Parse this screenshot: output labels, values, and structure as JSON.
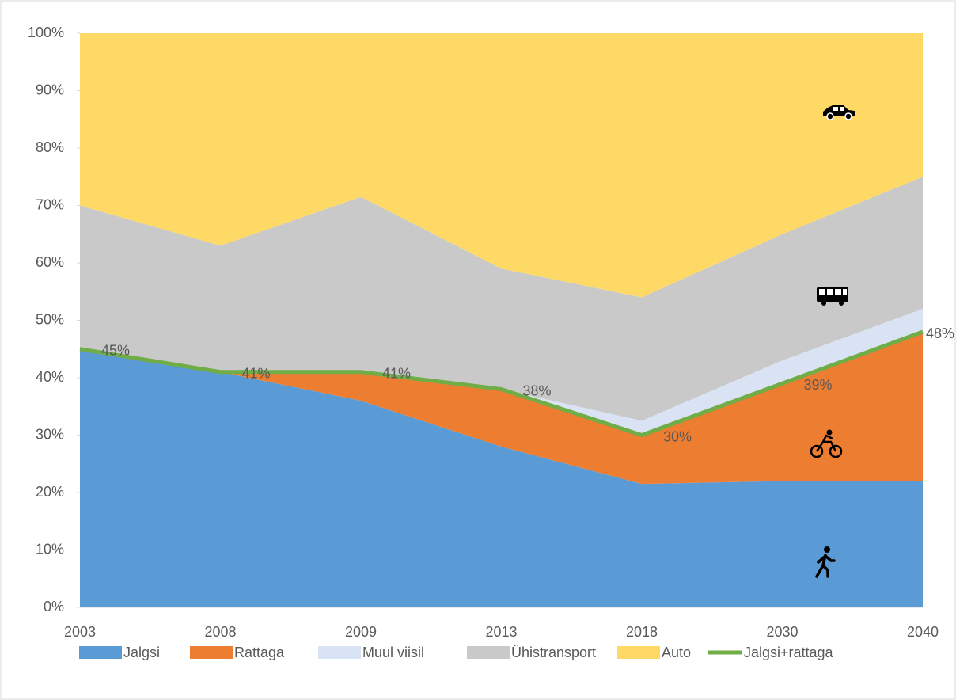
{
  "chart_data": {
    "type": "stacked_area",
    "categories": [
      "2003",
      "2008",
      "2009",
      "2013",
      "2018",
      "2030",
      "2040"
    ],
    "series": [
      {
        "name": "Jalgsi",
        "color": "#5b9bd5",
        "values": [
          45,
          41,
          36,
          28,
          21.5,
          22,
          22
        ]
      },
      {
        "name": "Rattaga",
        "color": "#ed7d31",
        "values": [
          0,
          0,
          5,
          10,
          8.5,
          17,
          26
        ]
      },
      {
        "name": "Muul viisil",
        "color": "#dae3f3",
        "values": [
          0,
          0,
          0,
          0,
          2.5,
          4,
          4
        ]
      },
      {
        "name": "Ühistransport",
        "color": "#c9c9c9",
        "values": [
          25,
          22,
          30.5,
          21,
          21.5,
          22,
          23
        ]
      },
      {
        "name": "Auto",
        "color": "#ffd966",
        "values": [
          30,
          37,
          28.5,
          41,
          46,
          35,
          25
        ]
      }
    ],
    "line": {
      "name": "Jalgsi+rattaga",
      "color": "#70ad47",
      "values": [
        45,
        41,
        41,
        38,
        30,
        39,
        48
      ],
      "value_labels": [
        "45%",
        "41%",
        "41%",
        "38%",
        "30%",
        "39%",
        "48%"
      ]
    },
    "ylim": [
      0,
      100
    ],
    "yticks": [
      {
        "value": 0,
        "label": "0%"
      },
      {
        "value": 10,
        "label": "10%"
      },
      {
        "value": 20,
        "label": "20%"
      },
      {
        "value": 30,
        "label": "30%"
      },
      {
        "value": 40,
        "label": "40%"
      },
      {
        "value": 50,
        "label": "50%"
      },
      {
        "value": 60,
        "label": "60%"
      },
      {
        "value": 70,
        "label": "70%"
      },
      {
        "value": 80,
        "label": "80%"
      },
      {
        "value": 90,
        "label": "90%"
      },
      {
        "value": 100,
        "label": "100%"
      }
    ],
    "legend": "bottom"
  }
}
